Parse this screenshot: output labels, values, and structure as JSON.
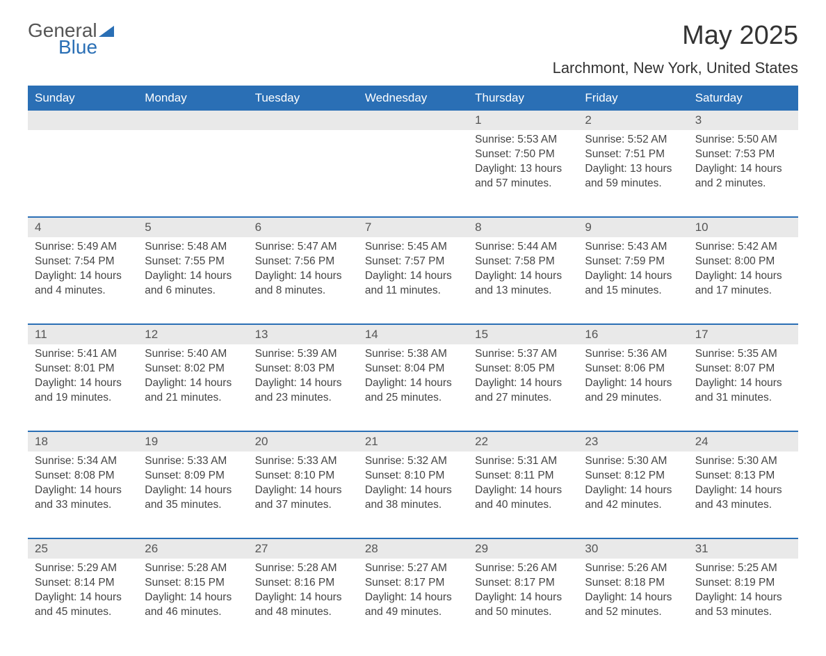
{
  "logo": {
    "line1": "General",
    "line2": "Blue"
  },
  "title": "May 2025",
  "location": "Larchmont, New York, United States",
  "colors": {
    "header_bg": "#2a6fb5",
    "header_text": "#ffffff",
    "daynum_bg": "#e9e9e9",
    "text": "#444444",
    "rule": "#2a6fb5",
    "page_bg": "#ffffff"
  },
  "typography": {
    "title_size": 38,
    "location_size": 22,
    "header_size": 17,
    "body_size": 15.5
  },
  "layout": {
    "columns": 7,
    "column_labels": [
      "Sunday",
      "Monday",
      "Tuesday",
      "Wednesday",
      "Thursday",
      "Friday",
      "Saturday"
    ]
  },
  "weeks": [
    {
      "days": [
        {
          "num": "",
          "sunrise": "",
          "sunset": "",
          "daylight": ""
        },
        {
          "num": "",
          "sunrise": "",
          "sunset": "",
          "daylight": ""
        },
        {
          "num": "",
          "sunrise": "",
          "sunset": "",
          "daylight": ""
        },
        {
          "num": "",
          "sunrise": "",
          "sunset": "",
          "daylight": ""
        },
        {
          "num": "1",
          "sunrise": "Sunrise: 5:53 AM",
          "sunset": "Sunset: 7:50 PM",
          "daylight": "Daylight: 13 hours and 57 minutes."
        },
        {
          "num": "2",
          "sunrise": "Sunrise: 5:52 AM",
          "sunset": "Sunset: 7:51 PM",
          "daylight": "Daylight: 13 hours and 59 minutes."
        },
        {
          "num": "3",
          "sunrise": "Sunrise: 5:50 AM",
          "sunset": "Sunset: 7:53 PM",
          "daylight": "Daylight: 14 hours and 2 minutes."
        }
      ]
    },
    {
      "days": [
        {
          "num": "4",
          "sunrise": "Sunrise: 5:49 AM",
          "sunset": "Sunset: 7:54 PM",
          "daylight": "Daylight: 14 hours and 4 minutes."
        },
        {
          "num": "5",
          "sunrise": "Sunrise: 5:48 AM",
          "sunset": "Sunset: 7:55 PM",
          "daylight": "Daylight: 14 hours and 6 minutes."
        },
        {
          "num": "6",
          "sunrise": "Sunrise: 5:47 AM",
          "sunset": "Sunset: 7:56 PM",
          "daylight": "Daylight: 14 hours and 8 minutes."
        },
        {
          "num": "7",
          "sunrise": "Sunrise: 5:45 AM",
          "sunset": "Sunset: 7:57 PM",
          "daylight": "Daylight: 14 hours and 11 minutes."
        },
        {
          "num": "8",
          "sunrise": "Sunrise: 5:44 AM",
          "sunset": "Sunset: 7:58 PM",
          "daylight": "Daylight: 14 hours and 13 minutes."
        },
        {
          "num": "9",
          "sunrise": "Sunrise: 5:43 AM",
          "sunset": "Sunset: 7:59 PM",
          "daylight": "Daylight: 14 hours and 15 minutes."
        },
        {
          "num": "10",
          "sunrise": "Sunrise: 5:42 AM",
          "sunset": "Sunset: 8:00 PM",
          "daylight": "Daylight: 14 hours and 17 minutes."
        }
      ]
    },
    {
      "days": [
        {
          "num": "11",
          "sunrise": "Sunrise: 5:41 AM",
          "sunset": "Sunset: 8:01 PM",
          "daylight": "Daylight: 14 hours and 19 minutes."
        },
        {
          "num": "12",
          "sunrise": "Sunrise: 5:40 AM",
          "sunset": "Sunset: 8:02 PM",
          "daylight": "Daylight: 14 hours and 21 minutes."
        },
        {
          "num": "13",
          "sunrise": "Sunrise: 5:39 AM",
          "sunset": "Sunset: 8:03 PM",
          "daylight": "Daylight: 14 hours and 23 minutes."
        },
        {
          "num": "14",
          "sunrise": "Sunrise: 5:38 AM",
          "sunset": "Sunset: 8:04 PM",
          "daylight": "Daylight: 14 hours and 25 minutes."
        },
        {
          "num": "15",
          "sunrise": "Sunrise: 5:37 AM",
          "sunset": "Sunset: 8:05 PM",
          "daylight": "Daylight: 14 hours and 27 minutes."
        },
        {
          "num": "16",
          "sunrise": "Sunrise: 5:36 AM",
          "sunset": "Sunset: 8:06 PM",
          "daylight": "Daylight: 14 hours and 29 minutes."
        },
        {
          "num": "17",
          "sunrise": "Sunrise: 5:35 AM",
          "sunset": "Sunset: 8:07 PM",
          "daylight": "Daylight: 14 hours and 31 minutes."
        }
      ]
    },
    {
      "days": [
        {
          "num": "18",
          "sunrise": "Sunrise: 5:34 AM",
          "sunset": "Sunset: 8:08 PM",
          "daylight": "Daylight: 14 hours and 33 minutes."
        },
        {
          "num": "19",
          "sunrise": "Sunrise: 5:33 AM",
          "sunset": "Sunset: 8:09 PM",
          "daylight": "Daylight: 14 hours and 35 minutes."
        },
        {
          "num": "20",
          "sunrise": "Sunrise: 5:33 AM",
          "sunset": "Sunset: 8:10 PM",
          "daylight": "Daylight: 14 hours and 37 minutes."
        },
        {
          "num": "21",
          "sunrise": "Sunrise: 5:32 AM",
          "sunset": "Sunset: 8:10 PM",
          "daylight": "Daylight: 14 hours and 38 minutes."
        },
        {
          "num": "22",
          "sunrise": "Sunrise: 5:31 AM",
          "sunset": "Sunset: 8:11 PM",
          "daylight": "Daylight: 14 hours and 40 minutes."
        },
        {
          "num": "23",
          "sunrise": "Sunrise: 5:30 AM",
          "sunset": "Sunset: 8:12 PM",
          "daylight": "Daylight: 14 hours and 42 minutes."
        },
        {
          "num": "24",
          "sunrise": "Sunrise: 5:30 AM",
          "sunset": "Sunset: 8:13 PM",
          "daylight": "Daylight: 14 hours and 43 minutes."
        }
      ]
    },
    {
      "days": [
        {
          "num": "25",
          "sunrise": "Sunrise: 5:29 AM",
          "sunset": "Sunset: 8:14 PM",
          "daylight": "Daylight: 14 hours and 45 minutes."
        },
        {
          "num": "26",
          "sunrise": "Sunrise: 5:28 AM",
          "sunset": "Sunset: 8:15 PM",
          "daylight": "Daylight: 14 hours and 46 minutes."
        },
        {
          "num": "27",
          "sunrise": "Sunrise: 5:28 AM",
          "sunset": "Sunset: 8:16 PM",
          "daylight": "Daylight: 14 hours and 48 minutes."
        },
        {
          "num": "28",
          "sunrise": "Sunrise: 5:27 AM",
          "sunset": "Sunset: 8:17 PM",
          "daylight": "Daylight: 14 hours and 49 minutes."
        },
        {
          "num": "29",
          "sunrise": "Sunrise: 5:26 AM",
          "sunset": "Sunset: 8:17 PM",
          "daylight": "Daylight: 14 hours and 50 minutes."
        },
        {
          "num": "30",
          "sunrise": "Sunrise: 5:26 AM",
          "sunset": "Sunset: 8:18 PM",
          "daylight": "Daylight: 14 hours and 52 minutes."
        },
        {
          "num": "31",
          "sunrise": "Sunrise: 5:25 AM",
          "sunset": "Sunset: 8:19 PM",
          "daylight": "Daylight: 14 hours and 53 minutes."
        }
      ]
    }
  ]
}
